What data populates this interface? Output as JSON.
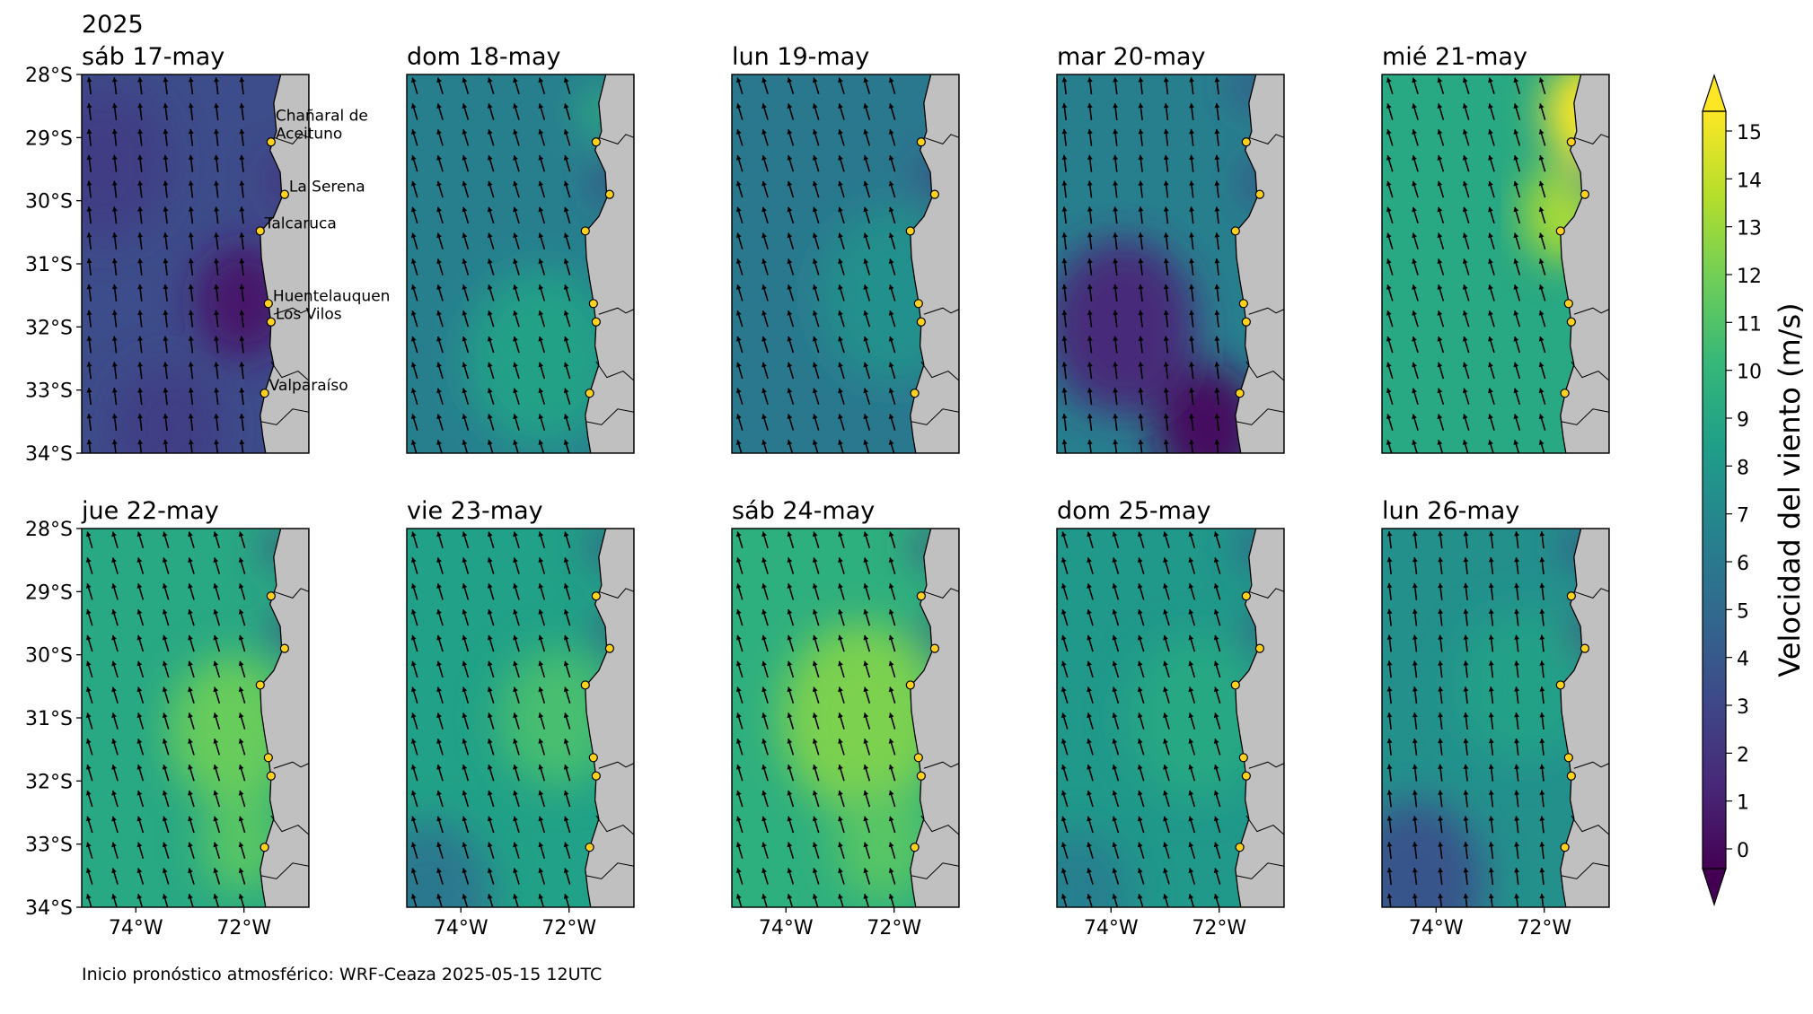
{
  "chart_data": {
    "type": "heatmap",
    "year_label": "2025",
    "footer": "Inicio pronóstico atmosférico: WRF-Ceaza 2025-05-15 12UTC",
    "colorbar": {
      "label": "Velocidad del viento (m/s)",
      "min": 0,
      "max": 15,
      "ticks": [
        "0",
        "1",
        "2",
        "3",
        "4",
        "5",
        "6",
        "7",
        "8",
        "9",
        "10",
        "11",
        "12",
        "13",
        "14",
        "15"
      ],
      "extend": "both",
      "colormap": [
        "#440154",
        "#482878",
        "#3e4989",
        "#31688e",
        "#26828e",
        "#1f9e89",
        "#35b779",
        "#6ece58",
        "#b5de2b",
        "#fde725"
      ]
    },
    "map": {
      "lon_range": [
        -75,
        -70.8
      ],
      "lat_range": [
        -34,
        -28
      ],
      "lat_ticks": [
        "28°S",
        "29°S",
        "30°S",
        "31°S",
        "32°S",
        "33°S",
        "34°S"
      ],
      "lon_ticks": [
        "74°W",
        "72°W"
      ],
      "land_color": "#c0c0c0"
    },
    "cities": [
      {
        "name": "Chañaral de Aceituno",
        "label_lines": [
          "Chañaral de",
          "Aceituno"
        ],
        "lon": -71.5,
        "lat": -29.07
      },
      {
        "name": "La Serena",
        "label_lines": [
          "La Serena"
        ],
        "lon": -71.25,
        "lat": -29.9
      },
      {
        "name": "Talcaruca",
        "label_lines": [
          "Talcaruca"
        ],
        "lon": -71.7,
        "lat": -30.48
      },
      {
        "name": "Huentelauquen",
        "label_lines": [
          "Huentelauquen"
        ],
        "lon": -71.55,
        "lat": -31.63
      },
      {
        "name": "Los Vilos",
        "label_lines": [
          "Los Vilos"
        ],
        "lon": -71.5,
        "lat": -31.92
      },
      {
        "name": "Valparaíso",
        "label_lines": [
          "Valparaíso"
        ],
        "lon": -71.62,
        "lat": -33.05
      }
    ],
    "panels": [
      {
        "title": "sáb 17-may",
        "base_speed": 3.5,
        "wind_dir": "S",
        "features": [
          {
            "lon": -72.0,
            "lat": -31.6,
            "speed": 1.0,
            "radius_deg": 0.9
          },
          {
            "lon": -74.6,
            "lat": -29.4,
            "speed": 2.8,
            "radius_deg": 1.2
          },
          {
            "lon": -73.4,
            "lat": -33.6,
            "speed": 2.8,
            "radius_deg": 1.0
          },
          {
            "lon": -71.2,
            "lat": -29.7,
            "speed": 2.0,
            "radius_deg": 0.35
          }
        ]
      },
      {
        "title": "dom 18-may",
        "base_speed": 6.5,
        "wind_dir": "SSE",
        "features": [
          {
            "lon": -72.5,
            "lat": -32.5,
            "speed": 8.5,
            "radius_deg": 1.4
          },
          {
            "lon": -71.4,
            "lat": -28.6,
            "speed": 9.5,
            "radius_deg": 0.4
          },
          {
            "lon": -71.2,
            "lat": -29.7,
            "speed": 2.5,
            "radius_deg": 0.3
          }
        ]
      },
      {
        "title": "lun 19-may",
        "base_speed": 6.0,
        "wind_dir": "SSE",
        "features": [
          {
            "lon": -72.0,
            "lat": -31.5,
            "speed": 7.5,
            "radius_deg": 1.4
          },
          {
            "lon": -71.2,
            "lat": -29.7,
            "speed": 2.5,
            "radius_deg": 0.3
          }
        ]
      },
      {
        "title": "mar 20-may",
        "base_speed": 6.5,
        "wind_dir": "S",
        "features": [
          {
            "lon": -72.2,
            "lat": -33.6,
            "speed": 0.5,
            "radius_deg": 1.0
          },
          {
            "lon": -73.8,
            "lat": -32.0,
            "speed": 1.8,
            "radius_deg": 1.4
          },
          {
            "lon": -71.2,
            "lat": -29.7,
            "speed": 2.5,
            "radius_deg": 0.3
          },
          {
            "lon": -71.4,
            "lat": -28.2,
            "speed": 3.0,
            "radius_deg": 0.3
          }
        ]
      },
      {
        "title": "mié 21-may",
        "base_speed": 9.0,
        "wind_dir": "SSE",
        "features": [
          {
            "lon": -71.2,
            "lat": -28.6,
            "speed": 15.0,
            "radius_deg": 0.8
          },
          {
            "lon": -71.6,
            "lat": -30.2,
            "speed": 13.0,
            "radius_deg": 0.8
          },
          {
            "lon": -71.2,
            "lat": -29.7,
            "speed": 4.0,
            "radius_deg": 0.25
          }
        ]
      },
      {
        "title": "jue 22-may",
        "base_speed": 9.0,
        "wind_dir": "SSE",
        "features": [
          {
            "lon": -72.2,
            "lat": -31.2,
            "speed": 11.5,
            "radius_deg": 1.2
          },
          {
            "lon": -72.0,
            "lat": -33.0,
            "speed": 11.0,
            "radius_deg": 0.8
          },
          {
            "lon": -71.2,
            "lat": -29.7,
            "speed": 2.5,
            "radius_deg": 0.3
          },
          {
            "lon": -71.3,
            "lat": -28.3,
            "speed": 3.0,
            "radius_deg": 0.3
          }
        ]
      },
      {
        "title": "vie 23-may",
        "base_speed": 8.5,
        "wind_dir": "SSE",
        "features": [
          {
            "lon": -72.2,
            "lat": -31.0,
            "speed": 10.5,
            "radius_deg": 1.1
          },
          {
            "lon": -74.6,
            "lat": -33.8,
            "speed": 6.0,
            "radius_deg": 1.2
          },
          {
            "lon": -71.2,
            "lat": -29.7,
            "speed": 2.5,
            "radius_deg": 0.3
          },
          {
            "lon": -71.3,
            "lat": -28.3,
            "speed": 3.0,
            "radius_deg": 0.3
          }
        ]
      },
      {
        "title": "sáb 24-may",
        "base_speed": 9.5,
        "wind_dir": "SSE",
        "features": [
          {
            "lon": -72.6,
            "lat": -31.0,
            "speed": 12.0,
            "radius_deg": 1.5
          },
          {
            "lon": -72.2,
            "lat": -33.0,
            "speed": 11.0,
            "radius_deg": 0.9
          },
          {
            "lon": -71.2,
            "lat": -29.7,
            "speed": 2.5,
            "radius_deg": 0.3
          },
          {
            "lon": -71.3,
            "lat": -28.3,
            "speed": 3.0,
            "radius_deg": 0.3
          }
        ]
      },
      {
        "title": "dom 25-may",
        "base_speed": 8.0,
        "wind_dir": "SSE",
        "features": [
          {
            "lon": -72.4,
            "lat": -31.0,
            "speed": 9.0,
            "radius_deg": 1.3
          },
          {
            "lon": -74.6,
            "lat": -33.8,
            "speed": 6.5,
            "radius_deg": 1.0
          },
          {
            "lon": -71.2,
            "lat": -29.7,
            "speed": 3.0,
            "radius_deg": 0.3
          },
          {
            "lon": -71.3,
            "lat": -28.3,
            "speed": 3.5,
            "radius_deg": 0.3
          }
        ]
      },
      {
        "title": "lun 26-may",
        "base_speed": 7.5,
        "wind_dir": "S",
        "features": [
          {
            "lon": -74.4,
            "lat": -33.6,
            "speed": 4.0,
            "radius_deg": 1.3
          },
          {
            "lon": -72.4,
            "lat": -30.5,
            "speed": 8.5,
            "radius_deg": 1.2
          },
          {
            "lon": -71.2,
            "lat": -29.7,
            "speed": 2.0,
            "radius_deg": 0.3
          },
          {
            "lon": -71.3,
            "lat": -28.3,
            "speed": 3.0,
            "radius_deg": 0.3
          }
        ]
      }
    ]
  }
}
